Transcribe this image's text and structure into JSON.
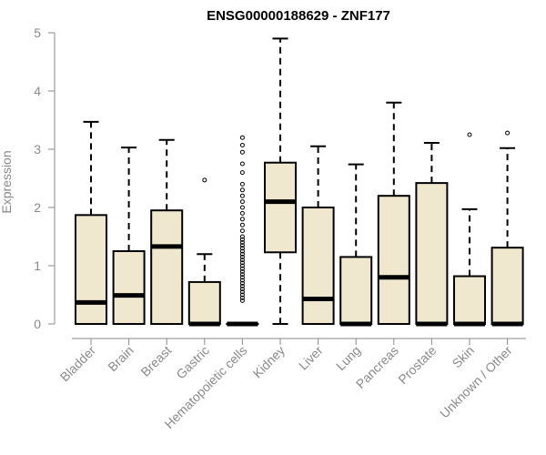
{
  "chart_data": {
    "type": "boxplot",
    "title": "ENSG00000188629 - ZNF177",
    "ylabel": "Expression",
    "ylim": [
      0,
      5
    ],
    "yticks": [
      "0",
      "1",
      "2",
      "3",
      "4",
      "5"
    ],
    "box_fill": "#efe8cf",
    "box_stroke": "#000000",
    "categories": [
      "Bladder",
      "Brain",
      "Breast",
      "Gastric",
      "Hematopoietic cells",
      "Kidney",
      "Liver",
      "Lung",
      "Pancreas",
      "Prostate",
      "Skin",
      "Unknown / Other"
    ],
    "boxes": [
      {
        "min": 0,
        "q1": 0,
        "median": 0.37,
        "q3": 1.87,
        "max": 3.47,
        "outliers": []
      },
      {
        "min": 0,
        "q1": 0,
        "median": 0.49,
        "q3": 1.25,
        "max": 3.03,
        "outliers": []
      },
      {
        "min": 0,
        "q1": 0,
        "median": 1.33,
        "q3": 1.95,
        "max": 3.16,
        "outliers": []
      },
      {
        "min": 0,
        "q1": 0,
        "median": 0,
        "q3": 0.72,
        "max": 1.2,
        "outliers": [
          2.47
        ]
      },
      {
        "min": 0,
        "q1": 0,
        "median": 0,
        "q3": 0,
        "max": 0,
        "outliers": [
          0.4,
          0.45,
          0.5,
          0.55,
          0.6,
          0.65,
          0.7,
          0.75,
          0.8,
          0.85,
          0.9,
          0.95,
          1.0,
          1.05,
          1.1,
          1.15,
          1.2,
          1.25,
          1.3,
          1.35,
          1.4,
          1.45,
          1.5,
          1.6,
          1.7,
          1.8,
          1.9,
          2.0,
          2.1,
          2.2,
          2.3,
          2.4,
          2.6,
          2.75,
          2.95,
          3.07,
          3.2
        ]
      },
      {
        "min": 0,
        "q1": 1.23,
        "median": 2.1,
        "q3": 2.77,
        "max": 4.9,
        "outliers": []
      },
      {
        "min": 0,
        "q1": 0,
        "median": 0.43,
        "q3": 2.0,
        "max": 3.05,
        "outliers": []
      },
      {
        "min": 0,
        "q1": 0,
        "median": 0,
        "q3": 1.15,
        "max": 2.74,
        "outliers": []
      },
      {
        "min": 0,
        "q1": 0,
        "median": 0.8,
        "q3": 2.2,
        "max": 3.8,
        "outliers": []
      },
      {
        "min": 0,
        "q1": 0,
        "median": 0,
        "q3": 2.42,
        "max": 3.11,
        "outliers": []
      },
      {
        "min": 0,
        "q1": 0,
        "median": 0,
        "q3": 0.82,
        "max": 1.97,
        "outliers": [
          3.25
        ]
      },
      {
        "min": 0,
        "q1": 0,
        "median": 0,
        "q3": 1.31,
        "max": 3.02,
        "outliers": [
          3.28
        ]
      }
    ]
  }
}
